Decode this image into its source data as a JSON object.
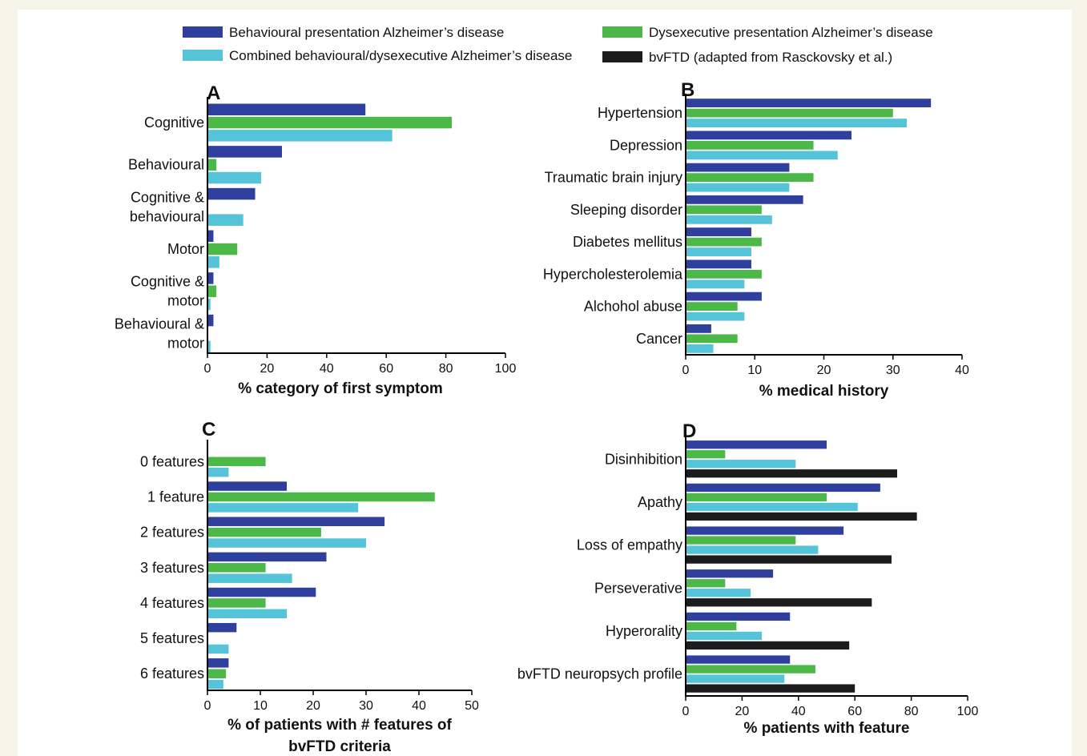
{
  "colors": {
    "behavioural": "#2f3f9e",
    "dysexecutive": "#4cb848",
    "combined": "#55c3d8",
    "bvftd": "#1c1c1c",
    "axis": "#000000"
  },
  "legend": [
    {
      "key": "behavioural",
      "label": "Behavioural presentation Alzheimer’s disease"
    },
    {
      "key": "combined",
      "label": "Combined behavioural/dysexecutive Alzheimer’s disease"
    },
    {
      "key": "dysexecutive",
      "label": "Dysexecutive presentation Alzheimer’s disease"
    },
    {
      "key": "bvftd",
      "label": "bvFTD (adapted from Rasckovsky et al.)"
    }
  ],
  "chart_data": [
    {
      "panel": "A",
      "type": "bar",
      "orientation": "horizontal",
      "xlabel": "% category of first symptom",
      "xlim": [
        0,
        100
      ],
      "xticks": [
        "0",
        "20",
        "40",
        "60",
        "80",
        "100"
      ],
      "categories": [
        [
          "Cognitive"
        ],
        [
          "Behavioural"
        ],
        [
          "Cognitive &",
          "behavioural"
        ],
        [
          "Motor"
        ],
        [
          "Cognitive &",
          "motor"
        ],
        [
          "Behavioural &",
          "motor"
        ]
      ],
      "series": [
        {
          "key": "behavioural",
          "values": [
            53,
            25,
            16,
            2,
            2,
            2
          ]
        },
        {
          "key": "dysexecutive",
          "values": [
            82,
            3,
            0,
            10,
            3,
            0
          ]
        },
        {
          "key": "combined",
          "values": [
            62,
            18,
            12,
            4,
            1,
            1
          ]
        }
      ]
    },
    {
      "panel": "B",
      "type": "bar",
      "orientation": "horizontal",
      "xlabel": "% medical history",
      "xlim": [
        0,
        40
      ],
      "xticks": [
        "0",
        "10",
        "20",
        "30",
        "40"
      ],
      "categories": [
        [
          "Hypertension"
        ],
        [
          "Depression"
        ],
        [
          "Traumatic brain injury"
        ],
        [
          "Sleeping disorder"
        ],
        [
          "Diabetes mellitus"
        ],
        [
          "Hypercholesterolemia"
        ],
        [
          "Alchohol abuse"
        ],
        [
          "Cancer"
        ]
      ],
      "series": [
        {
          "key": "behavioural",
          "values": [
            35.5,
            24,
            15,
            17,
            9.5,
            9.5,
            11,
            3.7
          ]
        },
        {
          "key": "dysexecutive",
          "values": [
            30,
            18.5,
            18.5,
            11,
            11,
            11,
            7.5,
            7.5
          ]
        },
        {
          "key": "combined",
          "values": [
            32,
            22,
            15,
            12.5,
            9.5,
            8.5,
            8.5,
            4
          ]
        }
      ]
    },
    {
      "panel": "C",
      "type": "bar",
      "orientation": "horizontal",
      "xlabel": [
        "% of patients with # features of",
        "bvFTD criteria"
      ],
      "xlim": [
        0,
        50
      ],
      "xticks": [
        "0",
        "10",
        "20",
        "30",
        "40",
        "50"
      ],
      "categories": [
        [
          "0 features"
        ],
        [
          "1 feature"
        ],
        [
          "2 features"
        ],
        [
          "3 features"
        ],
        [
          "4 features"
        ],
        [
          "5 features"
        ],
        [
          "6 features"
        ]
      ],
      "series": [
        {
          "key": "behavioural",
          "values": [
            0,
            15,
            33.5,
            22.5,
            20.5,
            5.5,
            4
          ]
        },
        {
          "key": "dysexecutive",
          "values": [
            11,
            43,
            21.5,
            11,
            11,
            0,
            3.5
          ]
        },
        {
          "key": "combined",
          "values": [
            4,
            28.5,
            30,
            16,
            15,
            4,
            3
          ]
        }
      ]
    },
    {
      "panel": "D",
      "type": "bar",
      "orientation": "horizontal",
      "xlabel": "% patients with feature",
      "xlim": [
        0,
        100
      ],
      "xticks": [
        "0",
        "20",
        "40",
        "60",
        "80",
        "100"
      ],
      "categories": [
        [
          "Disinhibition"
        ],
        [
          "Apathy"
        ],
        [
          "Loss of empathy"
        ],
        [
          "Perseverative"
        ],
        [
          "Hyperorality"
        ],
        [
          "bvFTD neuropsych profile"
        ]
      ],
      "series": [
        {
          "key": "behavioural",
          "values": [
            50,
            69,
            56,
            31,
            37,
            37
          ]
        },
        {
          "key": "dysexecutive",
          "values": [
            14,
            50,
            39,
            14,
            18,
            46
          ]
        },
        {
          "key": "combined",
          "values": [
            39,
            61,
            47,
            23,
            27,
            35
          ]
        },
        {
          "key": "bvftd",
          "values": [
            75,
            82,
            73,
            66,
            58,
            60
          ]
        }
      ]
    }
  ]
}
